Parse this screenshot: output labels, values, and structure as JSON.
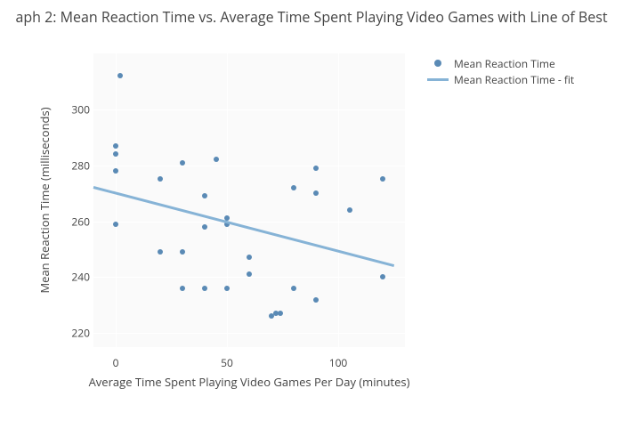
{
  "chart": {
    "type": "scatter",
    "title": "aph 2: Mean Reaction Time vs. Average Time Spent Playing Video Games with Line of Best",
    "title_fontsize": 16,
    "title_color": "#444444",
    "background_color": "#ffffff",
    "plot_background_color": "#fafafa",
    "grid_color": "#ffffff",
    "font_family": "Open Sans, Arial, sans-serif",
    "x_axis": {
      "title": "Average Time Spent Playing Video Games Per Day (minutes)",
      "title_fontsize": 13,
      "lim": [
        -10,
        130
      ],
      "ticks": [
        0,
        50,
        100
      ],
      "tick_fontsize": 12
    },
    "y_axis": {
      "title": "Mean Reaction Time (milliseconds)",
      "title_fontsize": 13,
      "lim": [
        215,
        320
      ],
      "ticks": [
        220,
        240,
        260,
        280,
        300
      ],
      "tick_fontsize": 12
    },
    "series": [
      {
        "name": "Mean Reaction Time",
        "type": "scatter",
        "marker_style": "circle",
        "marker_size": 6,
        "color": "#5a8ab5",
        "points": [
          {
            "x": 0,
            "y": 259
          },
          {
            "x": 0,
            "y": 278
          },
          {
            "x": 0,
            "y": 284
          },
          {
            "x": 0,
            "y": 287
          },
          {
            "x": 2,
            "y": 312
          },
          {
            "x": 20,
            "y": 249
          },
          {
            "x": 20,
            "y": 275
          },
          {
            "x": 30,
            "y": 236
          },
          {
            "x": 30,
            "y": 249
          },
          {
            "x": 30,
            "y": 281
          },
          {
            "x": 40,
            "y": 236
          },
          {
            "x": 40,
            "y": 258
          },
          {
            "x": 40,
            "y": 269
          },
          {
            "x": 45,
            "y": 282
          },
          {
            "x": 50,
            "y": 236
          },
          {
            "x": 50,
            "y": 259
          },
          {
            "x": 50,
            "y": 261
          },
          {
            "x": 60,
            "y": 241
          },
          {
            "x": 60,
            "y": 247
          },
          {
            "x": 70,
            "y": 226
          },
          {
            "x": 72,
            "y": 227
          },
          {
            "x": 74,
            "y": 227
          },
          {
            "x": 80,
            "y": 236
          },
          {
            "x": 80,
            "y": 272
          },
          {
            "x": 90,
            "y": 232
          },
          {
            "x": 90,
            "y": 270
          },
          {
            "x": 90,
            "y": 279
          },
          {
            "x": 105,
            "y": 264
          },
          {
            "x": 120,
            "y": 240
          },
          {
            "x": 120,
            "y": 275
          }
        ]
      },
      {
        "name": "Mean Reaction Time - fit",
        "type": "line",
        "color": "#86b3d6",
        "line_width": 3,
        "start": {
          "x": -10,
          "y": 272
        },
        "end": {
          "x": 125,
          "y": 244
        }
      }
    ],
    "legend": {
      "position": "right-top",
      "fontsize": 12,
      "items": [
        {
          "label": "Mean Reaction Time",
          "type": "dot",
          "color": "#5a8ab5"
        },
        {
          "label": "Mean Reaction Time - fit",
          "type": "line",
          "color": "#86b3d6"
        }
      ]
    }
  }
}
